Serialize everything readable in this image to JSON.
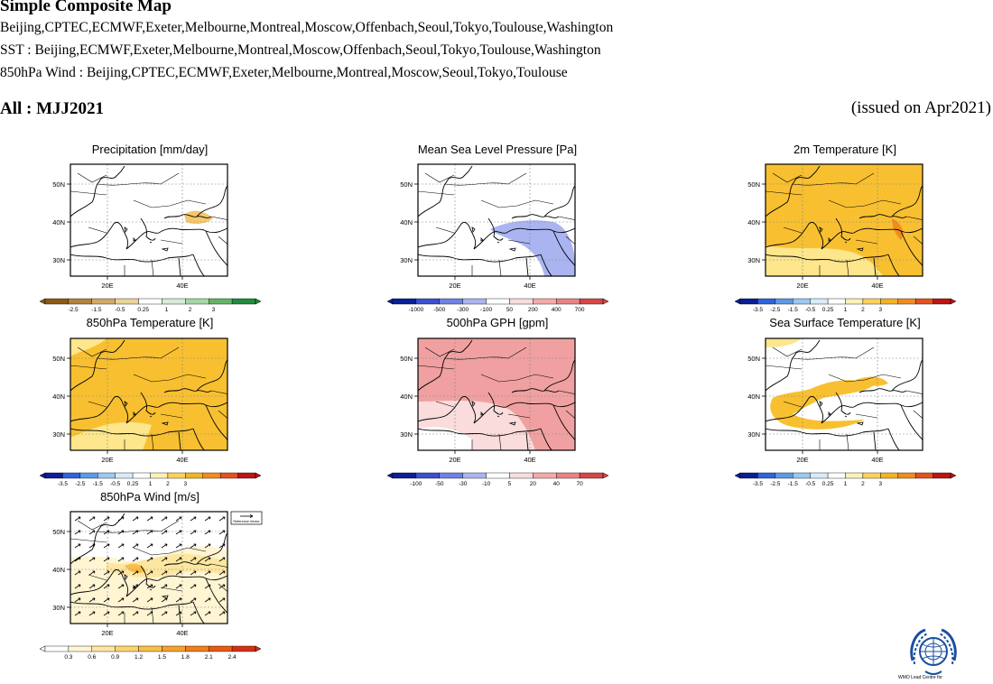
{
  "header": {
    "title": "Simple Composite Map",
    "line1": "Beijing,CPTEC,ECMWF,Exeter,Melbourne,Montreal,Moscow,Offenbach,Seoul,Tokyo,Toulouse,Washington",
    "line2": "SST : Beijing,ECMWF,Exeter,Melbourne,Montreal,Moscow,Offenbach,Seoul,Tokyo,Toulouse,Washington",
    "line3": "850hPa Wind : Beijing,CPTEC,ECMWF,Exeter,Melbourne,Montreal,Moscow,Seoul,Tokyo,Toulouse",
    "season": "All : MJJ2021",
    "issued": "(issued on Apr2021)"
  },
  "axes": {
    "lat_labels": [
      "50N",
      "40N",
      "30N"
    ],
    "lon_labels": [
      "20E",
      "40E"
    ]
  },
  "panels": [
    {
      "title": "Precipitation [mm/day]",
      "palette": "precip",
      "ticks": [
        "-2.5",
        "-1.5",
        "-0.5",
        "0.25",
        "1",
        "2",
        "3"
      ]
    },
    {
      "title": "Mean Sea Level Pressure [Pa]",
      "palette": "bluered",
      "ticks": [
        "-1000",
        "-500",
        "-300",
        "-100",
        "50",
        "200",
        "400",
        "700"
      ]
    },
    {
      "title": "2m Temperature [K]",
      "palette": "bluered",
      "ticks": [
        "-3.5",
        "-2.5",
        "-1.5",
        "-0.5",
        "0.25",
        "1",
        "2",
        "3"
      ]
    },
    {
      "title": "850hPa Temperature [K]",
      "palette": "bluered",
      "ticks": [
        "-3.5",
        "-2.5",
        "-1.5",
        "-0.5",
        "0.25",
        "1",
        "2",
        "3"
      ]
    },
    {
      "title": "500hPa GPH [gpm]",
      "palette": "bluered",
      "ticks": [
        "-100",
        "-50",
        "-30",
        "-10",
        "5",
        "20",
        "40",
        "70"
      ]
    },
    {
      "title": "Sea Surface Temperature [K]",
      "palette": "bluered",
      "ticks": [
        "-3.5",
        "-2.5",
        "-1.5",
        "-0.5",
        "0.25",
        "1",
        "2",
        "3"
      ]
    },
    {
      "title": "850hPa Wind [m/s]",
      "palette": "wind",
      "ticks": [
        "0.3",
        "0.6",
        "0.9",
        "1.2",
        "1.5",
        "1.8",
        "2.1",
        "2.4"
      ]
    }
  ],
  "wind_legend": "Reference Vector",
  "colors": {
    "precip": [
      "#8c5a14",
      "#b4823c",
      "#d2aa64",
      "#ebd296",
      "#ffffff",
      "#d7ebd7",
      "#a5d7a5",
      "#64b464",
      "#1e8c3c"
    ],
    "bluered": [
      "#0a1e96",
      "#2d64dc",
      "#5a9ae6",
      "#9ac8f0",
      "#d7ebfa",
      "#ffffff",
      "#fff0b4",
      "#fcd25a",
      "#f5b41e",
      "#f08c1e",
      "#e6501e",
      "#be1414"
    ],
    "gph": [
      "#0a1e96",
      "#3c50d2",
      "#6e82e6",
      "#aab4f0",
      "#ffffff",
      "#fadcdc",
      "#f5aaaa",
      "#eb8282",
      "#d74646"
    ],
    "wind": [
      "#ffffff",
      "#fff5d2",
      "#fde6a0",
      "#fbd46e",
      "#f8be46",
      "#f5a02d",
      "#f07d1e",
      "#e65a14",
      "#d23214"
    ]
  },
  "logo": {
    "name": "wmo-emblem",
    "caption": "WMO Lead Centre for"
  }
}
